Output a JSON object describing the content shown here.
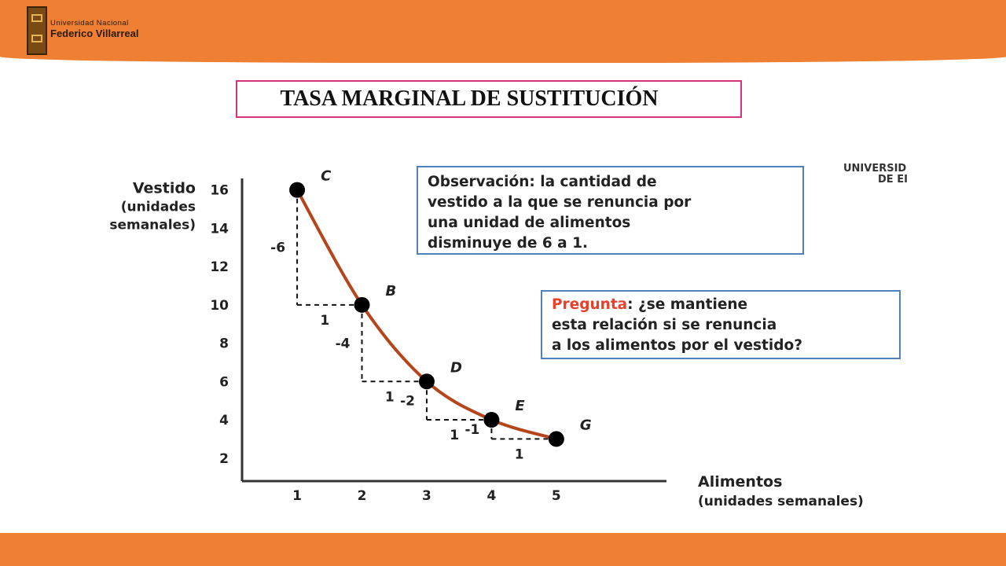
{
  "header": {
    "logo_line1": "Universidad Nacional",
    "logo_line2": "Federico Villarreal"
  },
  "slide": {
    "title": "TASA MARGINAL DE SUSTITUCIÓN"
  },
  "observation": {
    "lines": [
      "Observación: la cantidad de",
      "vestido a la que se renuncia por",
      "una unidad de alimentos",
      "disminuye de 6 a 1."
    ]
  },
  "question": {
    "keyword": "Pregunta",
    "line1_rest": ": ¿se mantiene",
    "line2": "esta relación si se renuncia",
    "line3": "a los alimentos por el vestido?"
  },
  "cut_label": {
    "line1": "UNIVERSID",
    "line2": "DE EI"
  },
  "colors": {
    "band": "#ee7f33",
    "title_border": "#d6337a",
    "box_border": "#4f81bd",
    "curve": "#b5451b",
    "question_keyword": "#e8402a"
  },
  "chart_data": {
    "type": "line",
    "ylabel_lines": [
      "Vestido",
      "(unidades",
      "semanales)"
    ],
    "xlabel_lines": [
      "Alimentos",
      "(unidades semanales)"
    ],
    "x_ticks": [
      1,
      2,
      3,
      4,
      5
    ],
    "y_ticks": [
      2,
      4,
      6,
      8,
      10,
      12,
      14,
      16
    ],
    "xlim": [
      0.15,
      6.7
    ],
    "ylim": [
      0.8,
      16.6
    ],
    "points": [
      {
        "label": "C",
        "x": 1,
        "y": 16
      },
      {
        "label": "B",
        "x": 2,
        "y": 10
      },
      {
        "label": "D",
        "x": 3,
        "y": 6
      },
      {
        "label": "E",
        "x": 4,
        "y": 4
      },
      {
        "label": "G",
        "x": 5,
        "y": 3
      }
    ],
    "steps": [
      {
        "dy": "-6",
        "dx": "1"
      },
      {
        "dy": "-4",
        "dx": "1"
      },
      {
        "dy": "-2",
        "dx": "1"
      },
      {
        "dy": "-1",
        "dx": "1"
      }
    ]
  }
}
